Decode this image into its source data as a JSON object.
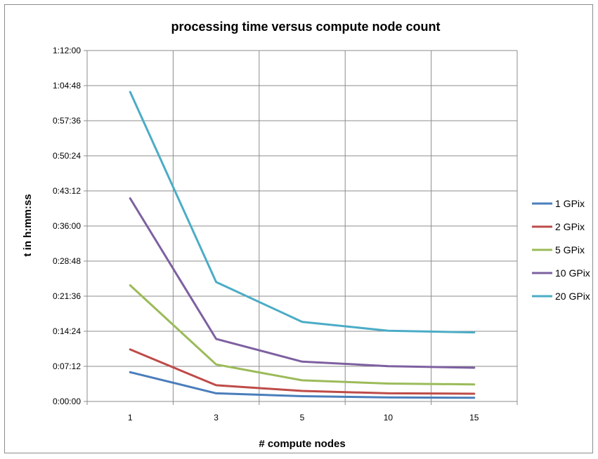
{
  "chart_data": {
    "type": "line",
    "title": "processing time versus compute node count",
    "xlabel": "# compute nodes",
    "ylabel": "t in h:mm:ss",
    "categories": [
      "1",
      "3",
      "5",
      "10",
      "15"
    ],
    "y_ticks": [
      "0:00:00",
      "0:07:12",
      "0:14:24",
      "0:21:36",
      "0:28:48",
      "0:36:00",
      "0:43:12",
      "0:50:24",
      "0:57:36",
      "1:04:48",
      "1:12:00"
    ],
    "ylim": [
      "0:00:00",
      "1:12:00"
    ],
    "grid": true,
    "legend_position": "right",
    "series": [
      {
        "name": "1 GPix",
        "color": "#4a7ebb",
        "values": [
          "0:06:00",
          "0:01:40",
          "0:01:05",
          "0:00:50",
          "0:00:45"
        ]
      },
      {
        "name": "2 GPix",
        "color": "#be4b48",
        "values": [
          "0:10:40",
          "0:03:20",
          "0:02:10",
          "0:01:40",
          "0:01:35"
        ]
      },
      {
        "name": "5 GPix",
        "color": "#9bbb59",
        "values": [
          "0:23:50",
          "0:07:35",
          "0:04:20",
          "0:03:40",
          "0:03:30"
        ]
      },
      {
        "name": "10 GPix",
        "color": "#7d60a0",
        "values": [
          "0:41:40",
          "0:12:50",
          "0:08:10",
          "0:07:15",
          "0:06:55"
        ]
      },
      {
        "name": "20 GPix",
        "color": "#4bacc6",
        "values": [
          "1:03:30",
          "0:24:30",
          "0:16:20",
          "0:14:30",
          "0:14:10"
        ]
      }
    ]
  }
}
